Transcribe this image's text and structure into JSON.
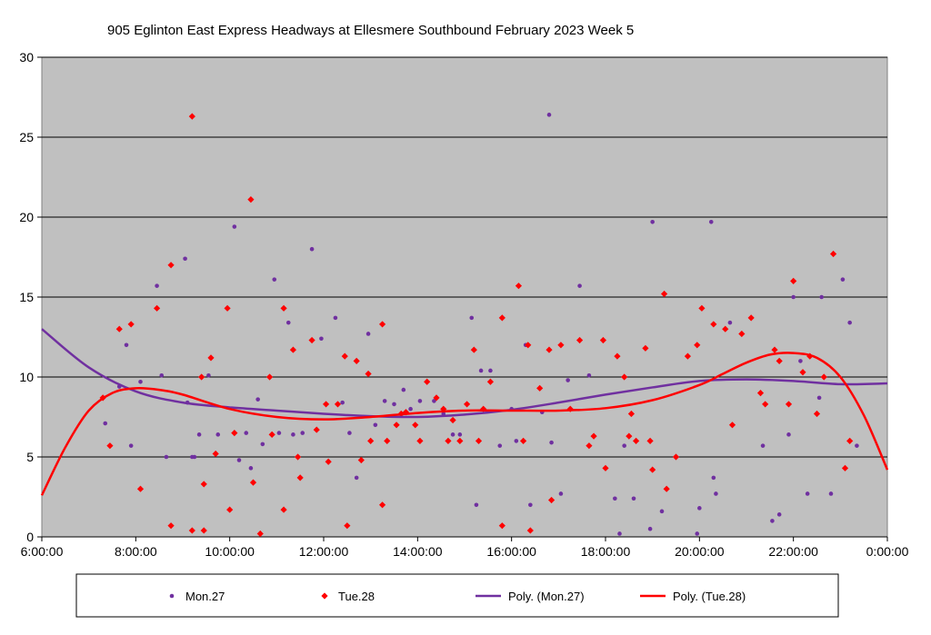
{
  "chart_data": {
    "type": "scatter",
    "title": "905 Eglinton East Express Headways at Ellesmere Southbound February 2023  Week 5",
    "xlabel": "",
    "ylabel": "",
    "x_unit": "hours since midnight",
    "xlim": [
      6,
      24
    ],
    "ylim": [
      0,
      30
    ],
    "x_ticks": [
      "6:00:00",
      "8:00:00",
      "10:00:00",
      "12:00:00",
      "14:00:00",
      "16:00:00",
      "18:00:00",
      "20:00:00",
      "22:00:00",
      "0:00:00"
    ],
    "y_ticks": [
      "0",
      "5",
      "10",
      "15",
      "20",
      "25",
      "30"
    ],
    "grid": "horizontal",
    "legend_position": "bottom",
    "background": "#c0c0c0",
    "series": [
      {
        "name": "Mon.27",
        "marker": "circle",
        "color": "#7030a0",
        "x": [
          7.35,
          7.65,
          7.8,
          7.9,
          8.1,
          8.45,
          8.55,
          8.65,
          9.05,
          9.1,
          9.2,
          9.25,
          9.35,
          9.55,
          9.75,
          10.1,
          10.2,
          10.35,
          10.45,
          10.6,
          10.7,
          10.95,
          11.05,
          11.25,
          11.35,
          11.55,
          11.75,
          11.95,
          12.25,
          12.4,
          12.55,
          12.7,
          12.95,
          13.1,
          13.3,
          13.5,
          13.7,
          13.85,
          14.05,
          14.35,
          14.55,
          14.75,
          14.9,
          15.15,
          15.25,
          15.35,
          15.55,
          15.75,
          16.0,
          16.1,
          16.3,
          16.4,
          16.65,
          16.8,
          16.85,
          17.05,
          17.2,
          17.45,
          17.65,
          18.2,
          18.3,
          18.4,
          18.6,
          18.95,
          19.0,
          19.2,
          19.95,
          20.0,
          20.25,
          20.3,
          20.35,
          20.65,
          21.35,
          21.55,
          21.7,
          21.9,
          22.0,
          22.15,
          22.3,
          22.55,
          22.6,
          22.8,
          23.05,
          23.2,
          23.35
        ],
        "y": [
          7.1,
          9.4,
          12.0,
          5.7,
          9.7,
          15.7,
          10.1,
          5.0,
          17.4,
          8.4,
          5.0,
          5.0,
          6.4,
          10.1,
          6.4,
          19.4,
          4.8,
          6.5,
          4.3,
          8.6,
          5.8,
          16.1,
          6.5,
          13.4,
          6.4,
          6.5,
          18.0,
          12.4,
          13.7,
          8.4,
          6.5,
          3.7,
          12.7,
          7.0,
          8.5,
          8.3,
          9.2,
          8.0,
          8.5,
          8.5,
          7.7,
          6.4,
          6.4,
          13.7,
          2.0,
          10.4,
          10.4,
          5.7,
          8.0,
          6.0,
          12.0,
          2.0,
          7.8,
          26.4,
          5.9,
          2.7,
          9.8,
          15.7,
          10.1,
          2.4,
          0.2,
          5.7,
          2.4,
          0.5,
          19.7,
          1.6,
          0.2,
          1.8,
          19.7,
          3.7,
          2.7,
          13.4,
          5.7,
          1.0,
          1.4,
          6.4,
          15.0,
          11.0,
          2.7,
          8.7,
          15.0,
          2.7,
          16.1,
          13.4,
          5.7
        ]
      },
      {
        "name": "Tue.28",
        "marker": "diamond",
        "color": "#ff0000",
        "x": [
          7.3,
          7.45,
          7.65,
          7.9,
          8.1,
          8.45,
          8.75,
          8.75,
          9.2,
          9.2,
          9.4,
          9.45,
          9.45,
          9.6,
          9.7,
          9.95,
          10.0,
          10.1,
          10.45,
          10.5,
          10.65,
          10.85,
          10.9,
          11.15,
          11.15,
          11.35,
          11.45,
          11.5,
          11.75,
          11.85,
          12.05,
          12.1,
          12.3,
          12.45,
          12.5,
          12.7,
          12.8,
          12.95,
          13.0,
          13.25,
          13.25,
          13.35,
          13.55,
          13.65,
          13.75,
          13.95,
          14.05,
          14.2,
          14.4,
          14.55,
          14.65,
          14.75,
          14.9,
          15.05,
          15.2,
          15.3,
          15.4,
          15.55,
          15.8,
          15.8,
          16.15,
          16.25,
          16.35,
          16.4,
          16.6,
          16.8,
          16.85,
          17.05,
          17.25,
          17.45,
          17.65,
          17.75,
          17.95,
          18.0,
          18.25,
          18.4,
          18.5,
          18.55,
          18.65,
          18.85,
          18.95,
          19.0,
          19.25,
          19.3,
          19.5,
          19.75,
          19.95,
          20.05,
          20.3,
          20.55,
          20.7,
          20.9,
          21.1,
          21.3,
          21.4,
          21.6,
          21.7,
          21.9,
          22.0,
          22.2,
          22.35,
          22.5,
          22.65,
          22.85,
          23.1,
          23.2
        ],
        "y": [
          8.7,
          5.7,
          13.0,
          13.3,
          3.0,
          14.3,
          17.0,
          0.7,
          26.3,
          0.4,
          10.0,
          3.3,
          0.4,
          11.2,
          5.2,
          14.3,
          1.7,
          6.5,
          21.1,
          3.4,
          0.2,
          10.0,
          6.4,
          14.3,
          1.7,
          11.7,
          5.0,
          3.7,
          12.3,
          6.7,
          8.3,
          4.7,
          8.3,
          11.3,
          0.7,
          11.0,
          4.8,
          10.2,
          6.0,
          13.3,
          2.0,
          6.0,
          7.0,
          7.7,
          7.8,
          7.0,
          6.0,
          9.7,
          8.7,
          8.0,
          6.0,
          7.3,
          6.0,
          8.3,
          11.7,
          6.0,
          8.0,
          9.7,
          13.7,
          0.7,
          15.7,
          6.0,
          12.0,
          0.4,
          9.3,
          11.7,
          2.3,
          12.0,
          8.0,
          12.3,
          5.7,
          6.3,
          12.3,
          4.3,
          11.3,
          10.0,
          6.3,
          7.7,
          6.0,
          11.8,
          6.0,
          4.2,
          15.2,
          3.0,
          5.0,
          11.3,
          12.0,
          14.3,
          13.3,
          13.0,
          7.0,
          12.7,
          13.7,
          9.0,
          8.3,
          11.7,
          11.0,
          8.3,
          16.0,
          10.3,
          11.3,
          7.7,
          10.0,
          17.7,
          4.3,
          6.0
        ]
      },
      {
        "name": "Poly. (Mon.27)",
        "type": "line",
        "color": "#7030a0",
        "x": [
          6,
          7,
          8,
          9,
          10,
          11,
          12,
          13,
          14,
          15,
          16,
          17,
          18,
          19,
          20,
          21,
          22,
          23,
          24
        ],
        "y": [
          13.0,
          10.6,
          9.1,
          8.4,
          8.1,
          7.9,
          7.7,
          7.55,
          7.5,
          7.65,
          7.95,
          8.4,
          8.9,
          9.35,
          9.75,
          9.85,
          9.75,
          9.55,
          9.6
        ]
      },
      {
        "name": "Poly. (Tue.28)",
        "type": "line",
        "color": "#ff0000",
        "x": [
          6,
          6.5,
          7,
          7.5,
          8,
          8.5,
          9,
          10,
          11,
          12,
          13,
          14,
          15,
          16,
          17,
          18,
          19,
          20,
          20.5,
          21,
          21.5,
          22,
          22.5,
          23,
          23.5,
          24
        ],
        "y": [
          2.6,
          5.6,
          7.9,
          9.0,
          9.3,
          9.2,
          8.9,
          8.0,
          7.5,
          7.35,
          7.5,
          7.75,
          7.9,
          7.9,
          7.9,
          8.05,
          8.55,
          9.5,
          10.2,
          10.9,
          11.4,
          11.5,
          11.2,
          10.0,
          7.6,
          4.2
        ]
      }
    ]
  }
}
